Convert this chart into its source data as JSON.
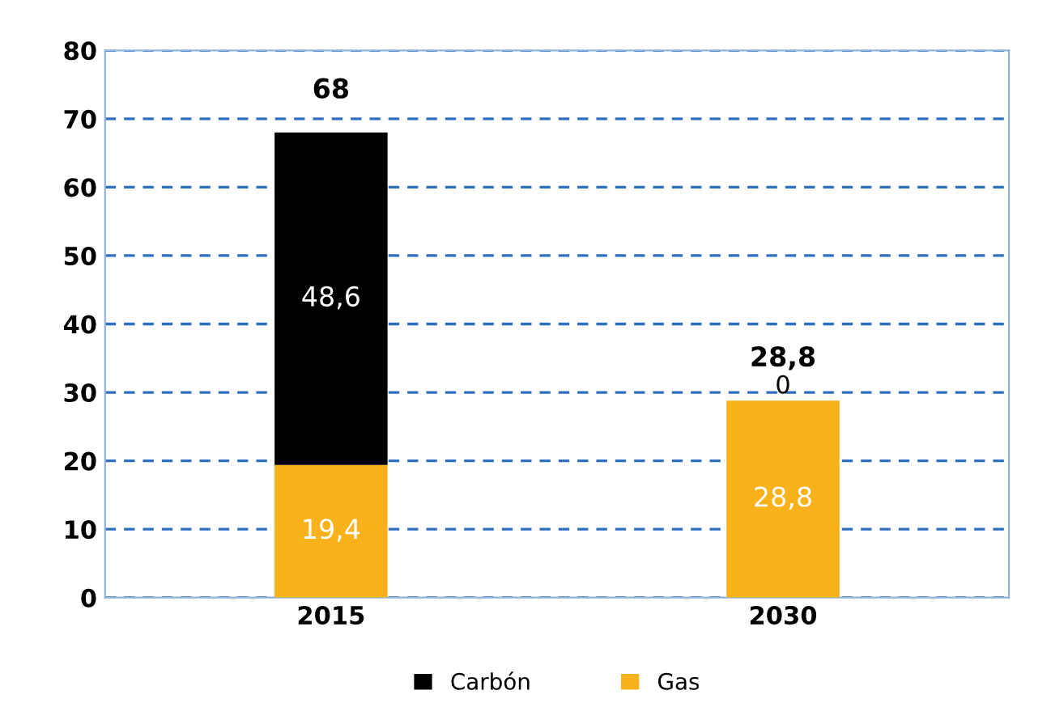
{
  "chart_data": {
    "type": "bar",
    "stacked": true,
    "categories": [
      "2015",
      "2030"
    ],
    "series": [
      {
        "name": "Gas",
        "color": "#f9b21b",
        "values": [
          19.4,
          28.8
        ],
        "value_labels": [
          "19,4",
          "28,8"
        ]
      },
      {
        "name": "Carbón",
        "color": "#000000",
        "values": [
          48.6,
          0
        ],
        "value_labels": [
          "48,6",
          "0"
        ]
      }
    ],
    "totals": [
      "68",
      "28,8"
    ],
    "ylim": [
      0,
      80
    ],
    "yticks": [
      0,
      10,
      20,
      30,
      40,
      50,
      60,
      70,
      80
    ],
    "grid": "y",
    "legend": "bottom"
  }
}
